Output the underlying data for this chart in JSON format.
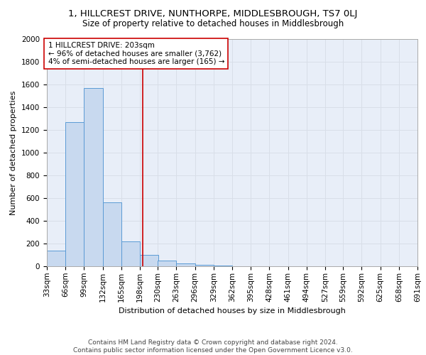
{
  "title1": "1, HILLCREST DRIVE, NUNTHORPE, MIDDLESBROUGH, TS7 0LJ",
  "title2": "Size of property relative to detached houses in Middlesbrough",
  "xlabel": "Distribution of detached houses by size in Middlesbrough",
  "ylabel": "Number of detached properties",
  "footnote": "Contains HM Land Registry data © Crown copyright and database right 2024.\nContains public sector information licensed under the Open Government Licence v3.0.",
  "bin_edges": [
    33,
    66,
    99,
    132,
    165,
    198,
    230,
    263,
    296,
    329,
    362,
    395,
    428,
    461,
    494,
    527,
    559,
    592,
    625,
    658,
    691
  ],
  "bar_heights": [
    140,
    1270,
    1570,
    560,
    220,
    100,
    50,
    25,
    15,
    5,
    3,
    2,
    1,
    1,
    1,
    0,
    0,
    0,
    0,
    0
  ],
  "bar_color": "#c8d9ef",
  "bar_edge_color": "#5b9bd5",
  "property_size": 203,
  "red_line_color": "#cc0000",
  "annotation_text": "1 HILLCREST DRIVE: 203sqm\n← 96% of detached houses are smaller (3,762)\n4% of semi-detached houses are larger (165) →",
  "annotation_box_color": "#ffffff",
  "annotation_box_edge": "#cc0000",
  "ylim": [
    0,
    2000
  ],
  "yticks": [
    0,
    200,
    400,
    600,
    800,
    1000,
    1200,
    1400,
    1600,
    1800,
    2000
  ],
  "background_color": "#e8eef8",
  "grid_color": "#d8dee8",
  "title1_fontsize": 9.5,
  "title2_fontsize": 8.5,
  "xlabel_fontsize": 8,
  "ylabel_fontsize": 8,
  "tick_fontsize": 7.5,
  "annotation_fontsize": 7.5,
  "footnote_fontsize": 6.5
}
